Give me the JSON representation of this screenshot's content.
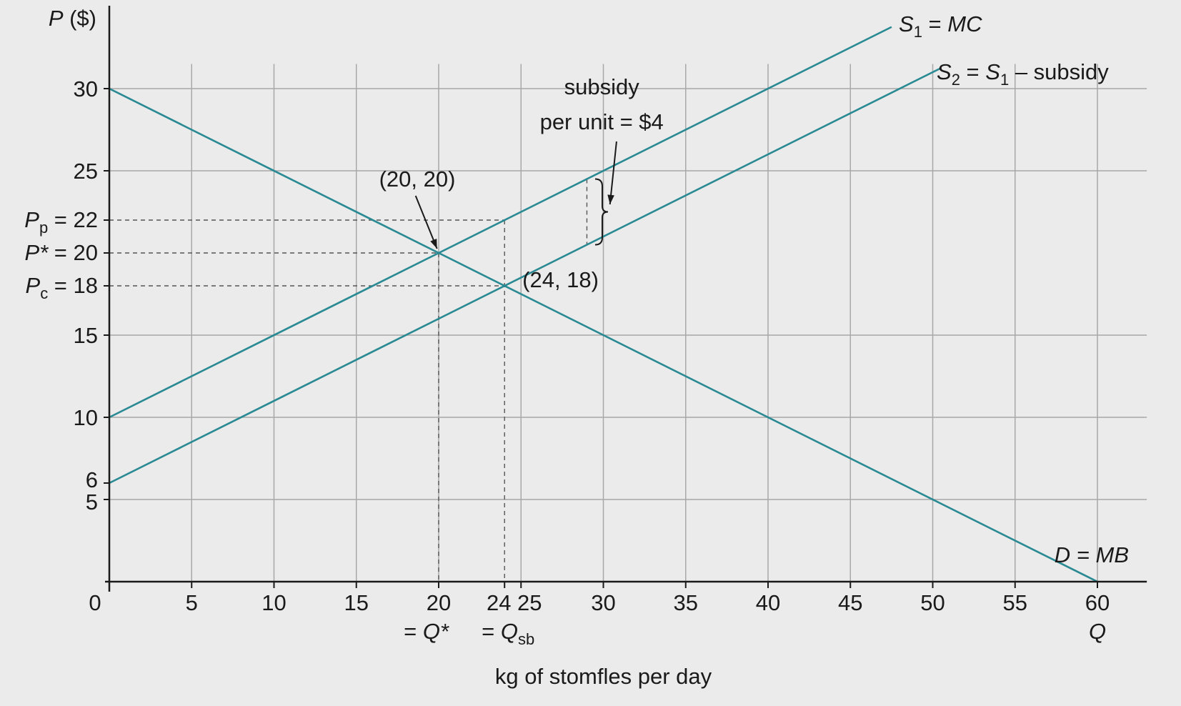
{
  "chart_data": {
    "type": "line",
    "title": "",
    "xlabel": "kg of stomfles per day",
    "ylabel": "P ($)",
    "x_axis_end_label": "Q",
    "xlim": [
      0,
      63
    ],
    "ylim": [
      0,
      31.5
    ],
    "x_grid": [
      0,
      5,
      10,
      15,
      20,
      25,
      30,
      35,
      40,
      45,
      50,
      55,
      60
    ],
    "y_grid": [
      5,
      10,
      15,
      25,
      30
    ],
    "x_ticks": [
      "0",
      "5",
      "10",
      "15",
      "20",
      "24",
      "25",
      "30",
      "35",
      "40",
      "45",
      "50",
      "55",
      "60"
    ],
    "y_ticks": [
      "5",
      "6",
      "10",
      "15",
      "25",
      "30"
    ],
    "y_special_ticks": [
      {
        "symbol": "P",
        "sub": "p",
        "text": " = 22",
        "value": 22
      },
      {
        "symbol": "P*",
        "sub": "",
        "text": " = 20",
        "value": 20
      },
      {
        "symbol": "P",
        "sub": "c",
        "text": " = 18",
        "value": 18
      }
    ],
    "x_sublabels": {
      "q_star": "= Q* ",
      "q_sb_prefix": "= Q",
      "q_sb_sub": "sb"
    },
    "series": [
      {
        "name": "D = MB",
        "points": [
          [
            0,
            30
          ],
          [
            60,
            0
          ]
        ]
      },
      {
        "name": "S1 = MC",
        "points": [
          [
            0,
            10
          ],
          [
            47.5,
            33.75
          ]
        ]
      },
      {
        "name": "S2 = S1 – subsidy",
        "points": [
          [
            0,
            6
          ],
          [
            50.5,
            31.25
          ]
        ]
      }
    ],
    "legend_labels": {
      "s1": {
        "symbol": "S",
        "sub": "1",
        "rest": " = MC"
      },
      "s2": {
        "symbol": "S",
        "sub": "2",
        "rest": " = S",
        "sub2": "1",
        "tail": " – subsidy"
      },
      "d": "D = MB"
    },
    "annotations": {
      "point_a": "(20, 20)",
      "point_b": "(24, 18)",
      "subsidy_line1": "subsidy",
      "subsidy_line2": "per unit = $4"
    },
    "equilibria": [
      [
        20,
        20
      ],
      [
        24,
        18
      ]
    ],
    "subsidy": {
      "x": 29,
      "from": 20.5,
      "to": 24.5
    },
    "colors": {
      "curve": "#2a8a93",
      "grid": "#a8a8a8",
      "background": "#ebebeb"
    }
  }
}
